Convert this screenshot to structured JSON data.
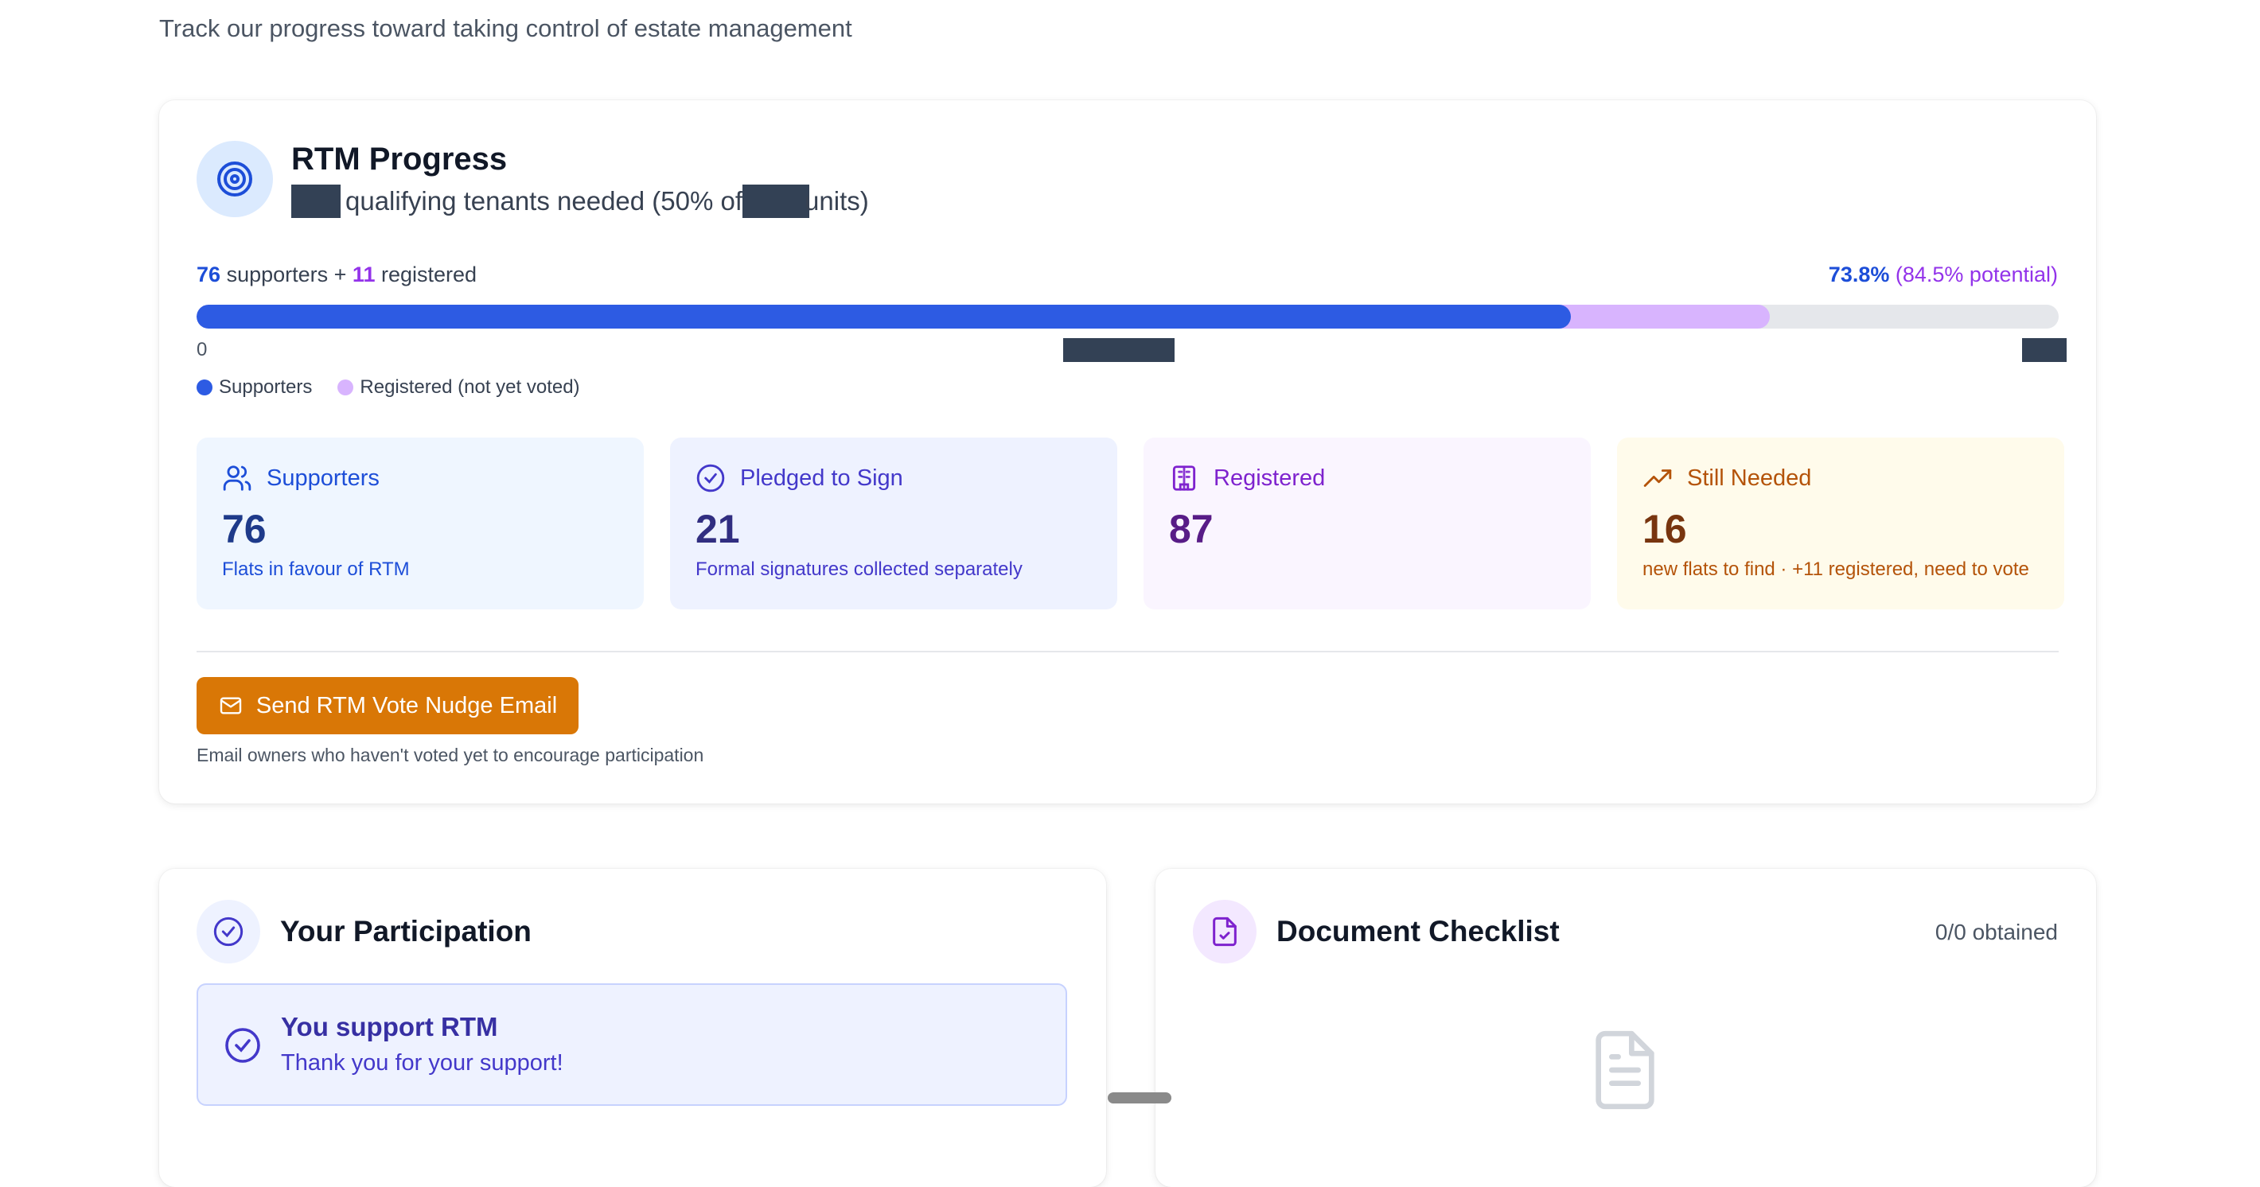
{
  "page": {
    "subtitle": "Track our progress toward taking control of estate management"
  },
  "progress": {
    "title": "RTM Progress",
    "subtitle_part1": "qualifying tenants needed (50% of",
    "subtitle_part2": "units)",
    "supporters_count": "76",
    "supporters_text": "supporters +",
    "registered_count": "11",
    "registered_text": "registered",
    "percent": "73.8%",
    "potential": "(84.5% potential)",
    "bar_supporters_pct": 73.8,
    "bar_potential_pct": 84.5,
    "axis_start": "0",
    "legend": {
      "supporters": "Supporters",
      "registered": "Registered (not yet voted)"
    },
    "colors": {
      "supporters": "#2d5be3",
      "registered": "#d8b4fe",
      "track": "#e5e7eb"
    }
  },
  "stats": [
    {
      "icon": "users-icon",
      "label": "Supporters",
      "value": "76",
      "note": "Flats in favour of RTM"
    },
    {
      "icon": "check-circle-icon",
      "label": "Pledged to Sign",
      "value": "21",
      "note": "Formal signatures collected separately"
    },
    {
      "icon": "building-icon",
      "label": "Registered",
      "value": "87",
      "note": ""
    },
    {
      "icon": "trending-up-icon",
      "label": "Still Needed",
      "value": "16",
      "note": "new flats to find · +11 registered, need to vote"
    }
  ],
  "nudge": {
    "button_label": "Send RTM Vote Nudge Email",
    "help": "Email owners who haven't voted yet to encourage participation",
    "color": "#d97706"
  },
  "participation": {
    "title": "Your Participation",
    "status_title": "You support RTM",
    "status_text": "Thank you for your support!"
  },
  "documents": {
    "title": "Document Checklist",
    "obtained": "0/0 obtained"
  }
}
